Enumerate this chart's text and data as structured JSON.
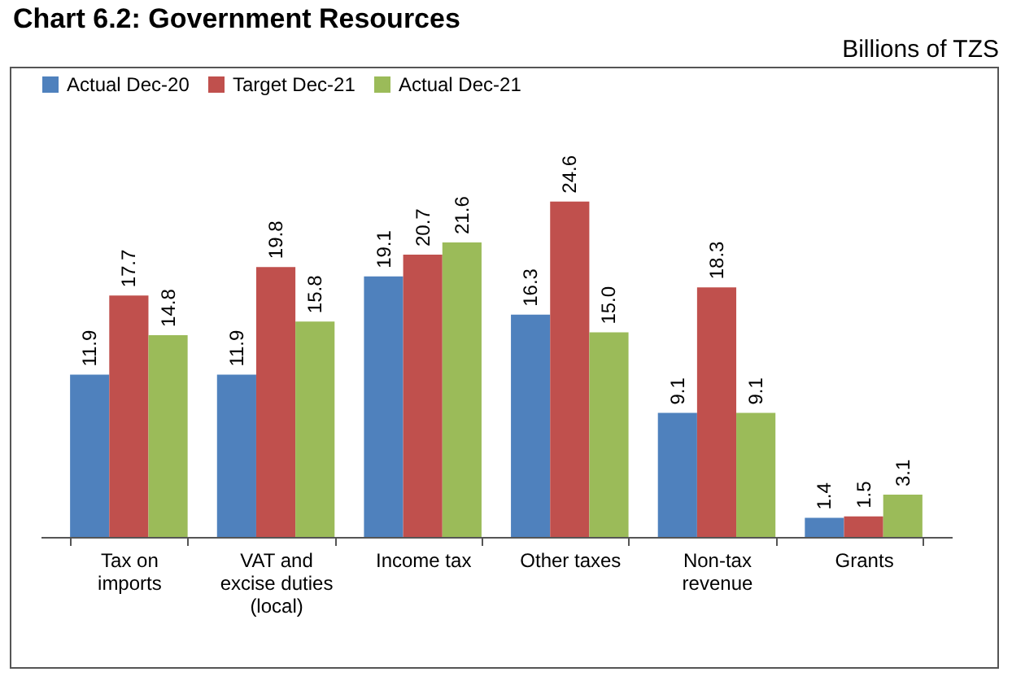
{
  "chart_data": {
    "type": "bar",
    "title": "Chart 6.2: Government Resources",
    "subtitle": "Billions of TZS",
    "categories": [
      "Tax on imports",
      "VAT and excise duties (local)",
      "Income tax",
      "Other taxes",
      "Non-tax revenue",
      "Grants"
    ],
    "series": [
      {
        "name": "Actual Dec-20",
        "color": "#4f81bd",
        "values": [
          11.9,
          11.9,
          19.1,
          16.3,
          9.1,
          1.4
        ],
        "value_labels": [
          "11.9",
          "11.9",
          "19.1",
          "16.3",
          "9.1",
          "1.4"
        ]
      },
      {
        "name": "Target Dec-21",
        "color": "#c0504d",
        "values": [
          17.7,
          19.8,
          20.7,
          24.6,
          18.3,
          1.5
        ],
        "value_labels": [
          "17.7",
          "19.8",
          "20.7",
          "24.6",
          "18.3",
          "1.5"
        ]
      },
      {
        "name": "Actual Dec-21",
        "color": "#9bbb59",
        "values": [
          14.8,
          15.8,
          21.6,
          15.0,
          9.1,
          3.1
        ],
        "value_labels": [
          "14.8",
          "15.8",
          "21.6",
          "15.0",
          "9.1",
          "3.1"
        ]
      }
    ],
    "legend": "top",
    "grid": false
  }
}
